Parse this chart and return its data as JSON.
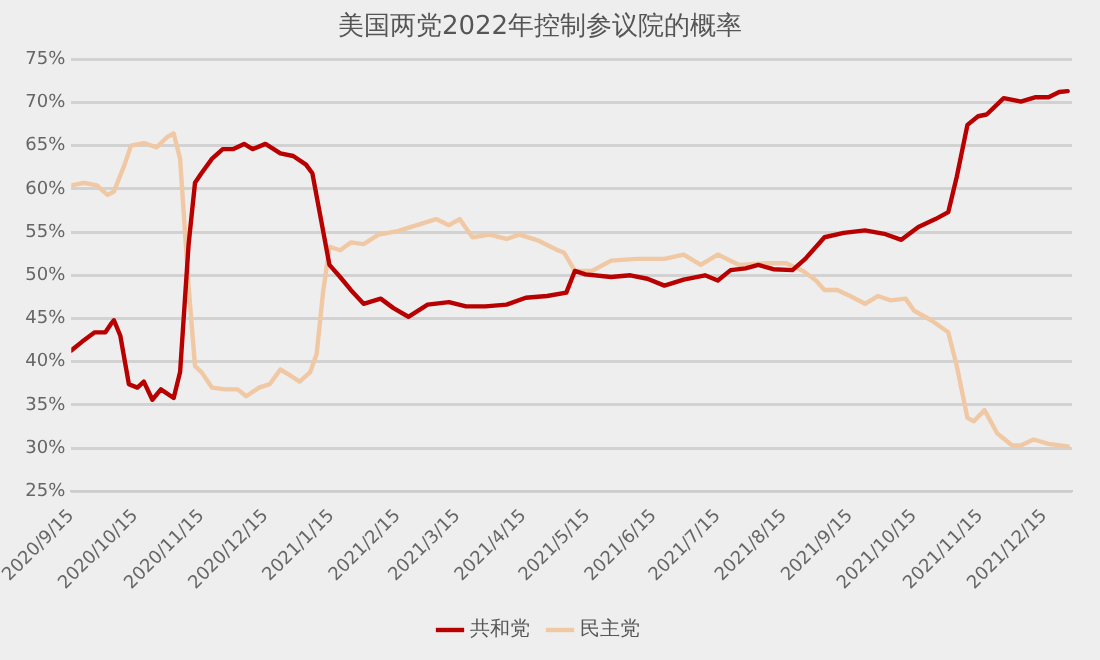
{
  "chart_data": {
    "type": "line",
    "title": "美国两党2022年控制参议院的概率",
    "xlim": [
      "2020-09-15",
      "2021-12-28"
    ],
    "xticks": [
      {
        "value": "2020-09-15",
        "label": "2020/9/15"
      },
      {
        "value": "2020-10-15",
        "label": "2020/10/15"
      },
      {
        "value": "2020-11-15",
        "label": "2020/11/15"
      },
      {
        "value": "2020-12-15",
        "label": "2020/12/15"
      },
      {
        "value": "2021-01-15",
        "label": "2021/1/15"
      },
      {
        "value": "2021-02-15",
        "label": "2021/2/15"
      },
      {
        "value": "2021-03-15",
        "label": "2021/3/15"
      },
      {
        "value": "2021-04-15",
        "label": "2021/4/15"
      },
      {
        "value": "2021-05-15",
        "label": "2021/5/15"
      },
      {
        "value": "2021-06-15",
        "label": "2021/6/15"
      },
      {
        "value": "2021-07-15",
        "label": "2021/7/15"
      },
      {
        "value": "2021-08-15",
        "label": "2021/8/15"
      },
      {
        "value": "2021-09-15",
        "label": "2021/9/15"
      },
      {
        "value": "2021-10-15",
        "label": "2021/10/15"
      },
      {
        "value": "2021-11-15",
        "label": "2021/11/15"
      },
      {
        "value": "2021-12-15",
        "label": "2021/12/15"
      }
    ],
    "ylim": [
      25,
      75
    ],
    "yticks": [
      {
        "value": 25,
        "label": "25%"
      },
      {
        "value": 30,
        "label": "30%"
      },
      {
        "value": 35,
        "label": "35%"
      },
      {
        "value": 40,
        "label": "40%"
      },
      {
        "value": 45,
        "label": "45%"
      },
      {
        "value": 50,
        "label": "50%"
      },
      {
        "value": 55,
        "label": "55%"
      },
      {
        "value": 60,
        "label": "60%"
      },
      {
        "value": 65,
        "label": "65%"
      },
      {
        "value": 70,
        "label": "70%"
      },
      {
        "value": 75,
        "label": "75%"
      }
    ],
    "grid": "y",
    "legend": "bottom",
    "marker": "none",
    "line_style": "solid",
    "series": [
      {
        "name": "共和党",
        "color": "#b80000",
        "x": [
          "2020-09-15",
          "2020-09-20",
          "2020-09-26",
          "2020-10-01",
          "2020-10-04",
          "2020-10-05",
          "2020-10-08",
          "2020-10-12",
          "2020-10-16",
          "2020-10-19",
          "2020-10-23",
          "2020-10-27",
          "2020-11-02",
          "2020-11-05",
          "2020-11-09",
          "2020-11-12",
          "2020-11-15",
          "2020-11-20",
          "2020-11-25",
          "2020-11-30",
          "2020-12-05",
          "2020-12-09",
          "2020-12-15",
          "2020-12-22",
          "2020-12-28",
          "2021-01-03",
          "2021-01-06",
          "2021-01-10",
          "2021-01-14",
          "2021-01-19",
          "2021-01-24",
          "2021-01-30",
          "2021-02-07",
          "2021-02-13",
          "2021-02-20",
          "2021-03-01",
          "2021-03-11",
          "2021-03-19",
          "2021-03-28",
          "2021-04-07",
          "2021-04-16",
          "2021-04-26",
          "2021-05-05",
          "2021-05-09",
          "2021-05-14",
          "2021-05-26",
          "2021-06-04",
          "2021-06-12",
          "2021-06-20",
          "2021-06-29",
          "2021-07-09",
          "2021-07-15",
          "2021-07-21",
          "2021-07-28",
          "2021-08-03",
          "2021-08-10",
          "2021-08-19",
          "2021-08-25",
          "2021-09-03",
          "2021-09-12",
          "2021-09-22",
          "2021-10-01",
          "2021-10-09",
          "2021-10-17",
          "2021-10-25",
          "2021-10-31",
          "2021-11-04",
          "2021-11-09",
          "2021-11-14",
          "2021-11-18",
          "2021-11-26",
          "2021-12-04",
          "2021-12-11",
          "2021-12-17",
          "2021-12-22",
          "2021-12-26"
        ],
        "values": [
          41.3,
          42.3,
          43.4,
          43.4,
          44.5,
          44.8,
          43.0,
          37.4,
          37.0,
          37.7,
          35.6,
          36.8,
          35.8,
          38.8,
          53.6,
          60.7,
          61.8,
          63.5,
          64.6,
          64.6,
          65.2,
          64.6,
          65.2,
          64.1,
          63.8,
          62.8,
          61.8,
          56.5,
          51.2,
          49.8,
          48.3,
          46.7,
          47.3,
          46.2,
          45.2,
          46.6,
          46.9,
          46.4,
          46.4,
          46.6,
          47.4,
          47.6,
          48.0,
          50.5,
          50.1,
          49.8,
          50.0,
          49.6,
          48.8,
          49.5,
          50.0,
          49.4,
          50.6,
          50.8,
          51.2,
          50.7,
          50.6,
          51.9,
          54.4,
          54.9,
          55.2,
          54.8,
          54.1,
          55.6,
          56.5,
          57.3,
          61.4,
          67.4,
          68.4,
          68.6,
          70.5,
          70.1,
          70.6,
          70.6,
          71.2,
          71.3
        ]
      },
      {
        "name": "民主党",
        "color": "#f1c8a4",
        "x": [
          "2020-09-15",
          "2020-09-21",
          "2020-09-27",
          "2020-10-02",
          "2020-10-05",
          "2020-10-10",
          "2020-10-13",
          "2020-10-19",
          "2020-10-25",
          "2020-10-30",
          "2020-11-02",
          "2020-11-05",
          "2020-11-09",
          "2020-11-12",
          "2020-11-15",
          "2020-11-20",
          "2020-11-26",
          "2020-12-02",
          "2020-12-06",
          "2020-12-12",
          "2020-12-17",
          "2020-12-22",
          "2020-12-26",
          "2020-12-31",
          "2021-01-05",
          "2021-01-08",
          "2021-01-11",
          "2021-01-14",
          "2021-01-19",
          "2021-01-24",
          "2021-01-30",
          "2021-02-06",
          "2021-02-15",
          "2021-02-24",
          "2021-03-05",
          "2021-03-11",
          "2021-03-16",
          "2021-03-22",
          "2021-03-30",
          "2021-04-07",
          "2021-04-13",
          "2021-04-22",
          "2021-05-01",
          "2021-05-04",
          "2021-05-09",
          "2021-05-17",
          "2021-05-26",
          "2021-06-07",
          "2021-06-20",
          "2021-06-29",
          "2021-07-07",
          "2021-07-15",
          "2021-07-25",
          "2021-08-07",
          "2021-08-16",
          "2021-08-24",
          "2021-08-30",
          "2021-09-03",
          "2021-09-09",
          "2021-09-15",
          "2021-09-22",
          "2021-09-28",
          "2021-10-04",
          "2021-10-11",
          "2021-10-15",
          "2021-10-23",
          "2021-10-31",
          "2021-11-04",
          "2021-11-09",
          "2021-11-12",
          "2021-11-17",
          "2021-11-23",
          "2021-11-30",
          "2021-12-04",
          "2021-12-10",
          "2021-12-17",
          "2021-12-26"
        ],
        "values": [
          60.4,
          60.7,
          60.4,
          59.3,
          59.7,
          62.8,
          65.0,
          65.3,
          64.8,
          66.0,
          66.4,
          63.5,
          48.7,
          39.5,
          38.8,
          37.0,
          36.8,
          36.8,
          36.0,
          37.0,
          37.4,
          39.1,
          38.5,
          37.7,
          38.8,
          40.9,
          48.0,
          53.3,
          52.9,
          53.8,
          53.6,
          54.7,
          55.1,
          55.8,
          56.5,
          55.8,
          56.5,
          54.4,
          54.7,
          54.2,
          54.7,
          54.0,
          52.9,
          52.6,
          50.5,
          50.5,
          51.7,
          51.9,
          51.9,
          52.4,
          51.2,
          52.4,
          51.2,
          51.4,
          51.4,
          50.5,
          49.4,
          48.3,
          48.3,
          47.6,
          46.7,
          47.6,
          47.1,
          47.3,
          45.9,
          44.8,
          43.4,
          39.5,
          33.5,
          33.1,
          34.4,
          31.7,
          30.3,
          30.3,
          31.0,
          30.5,
          30.2
        ]
      }
    ]
  }
}
